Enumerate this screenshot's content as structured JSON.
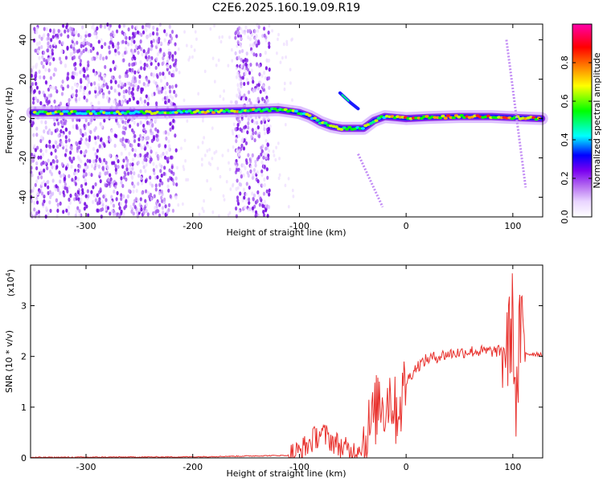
{
  "title": "C2E6.2025.160.19.09.R19",
  "chart_data": [
    {
      "type": "heatmap",
      "xlabel": "Height of straight line (km)",
      "ylabel": "Frequency (Hz)",
      "xlim": [
        -352,
        128
      ],
      "ylim": [
        -50,
        48
      ],
      "x_ticks": [
        -300,
        -200,
        -100,
        0,
        100
      ],
      "y_ticks": [
        -40,
        -20,
        0,
        20,
        40
      ],
      "x_tick_labels": [
        "-300",
        "-200",
        "-100",
        "0",
        "100"
      ],
      "y_tick_labels": [
        "-40",
        "-20",
        "0",
        "20",
        "40"
      ],
      "colorbar": {
        "label": "Normalized spectral amplitude",
        "range": [
          0,
          1
        ],
        "ticks": [
          0.0,
          0.2,
          0.4,
          0.6,
          0.8
        ],
        "tick_labels": [
          "0.0",
          "0.2",
          "0.4",
          "0.6",
          "0.8"
        ],
        "colormap": [
          "#ffffff",
          "#e9d5ff",
          "#b56cf0",
          "#7a00f0",
          "#0000ff",
          "#00ffff",
          "#00ff00",
          "#ffff00",
          "#ff8000",
          "#ff0000",
          "#ff00aa"
        ]
      },
      "ridge": {
        "x": [
          -350,
          -300,
          -250,
          -200,
          -150,
          -120,
          -100,
          -90,
          -80,
          -70,
          -60,
          -50,
          -40,
          -30,
          -20,
          -10,
          0,
          20,
          50,
          80,
          100,
          127
        ],
        "y": [
          3,
          3,
          3,
          3.5,
          4,
          4.5,
          3,
          1,
          -2,
          -4,
          -5,
          -5,
          -5,
          -1,
          1,
          0.5,
          0,
          0.5,
          1,
          1,
          0.5,
          0
        ]
      },
      "noise_bands": [
        [
          -352,
          -215
        ],
        [
          -160,
          -128
        ]
      ],
      "streaks": [
        {
          "x": [
            94,
            112
          ],
          "y": [
            40,
            -35
          ]
        },
        {
          "x": [
            -45,
            -22
          ],
          "y": [
            -18,
            -45
          ]
        }
      ]
    },
    {
      "type": "line",
      "xlabel": "Height of straight line (km)",
      "ylabel": "SNR (10 * v/v)",
      "y_multiplier": "(x10",
      "y_multiplier_exp": "4",
      "y_multiplier_close": ")",
      "xlim": [
        -352,
        128
      ],
      "ylim": [
        0,
        3.8
      ],
      "x_ticks": [
        -300,
        -200,
        -100,
        0,
        100
      ],
      "y_ticks": [
        0,
        1,
        2,
        3
      ],
      "x_tick_labels": [
        "-300",
        "-200",
        "-100",
        "0",
        "100"
      ],
      "y_tick_labels": [
        "0",
        "1",
        "2",
        "3"
      ],
      "series": [
        {
          "color": "#e8302c",
          "x": [
            -352,
            -200,
            -110,
            -100,
            -90,
            -80,
            -70,
            -60,
            -50,
            -40,
            -30,
            -25,
            -20,
            -15,
            -10,
            -5,
            0,
            10,
            20,
            40,
            60,
            80,
            90,
            96,
            100,
            102,
            104,
            106,
            108,
            110,
            115,
            120,
            128
          ],
          "y": [
            0.01,
            0.02,
            0.05,
            0.12,
            0.3,
            0.5,
            0.35,
            0.2,
            0.1,
            0.3,
            0.8,
            1.2,
            1.0,
            1.3,
            0.9,
            1.1,
            1.5,
            1.8,
            1.95,
            2.05,
            2.1,
            2.1,
            2.1,
            2.2,
            2.8,
            1.5,
            1.0,
            2.2,
            2.6,
            2.1,
            2.05,
            2.05,
            2.05
          ]
        }
      ]
    }
  ]
}
